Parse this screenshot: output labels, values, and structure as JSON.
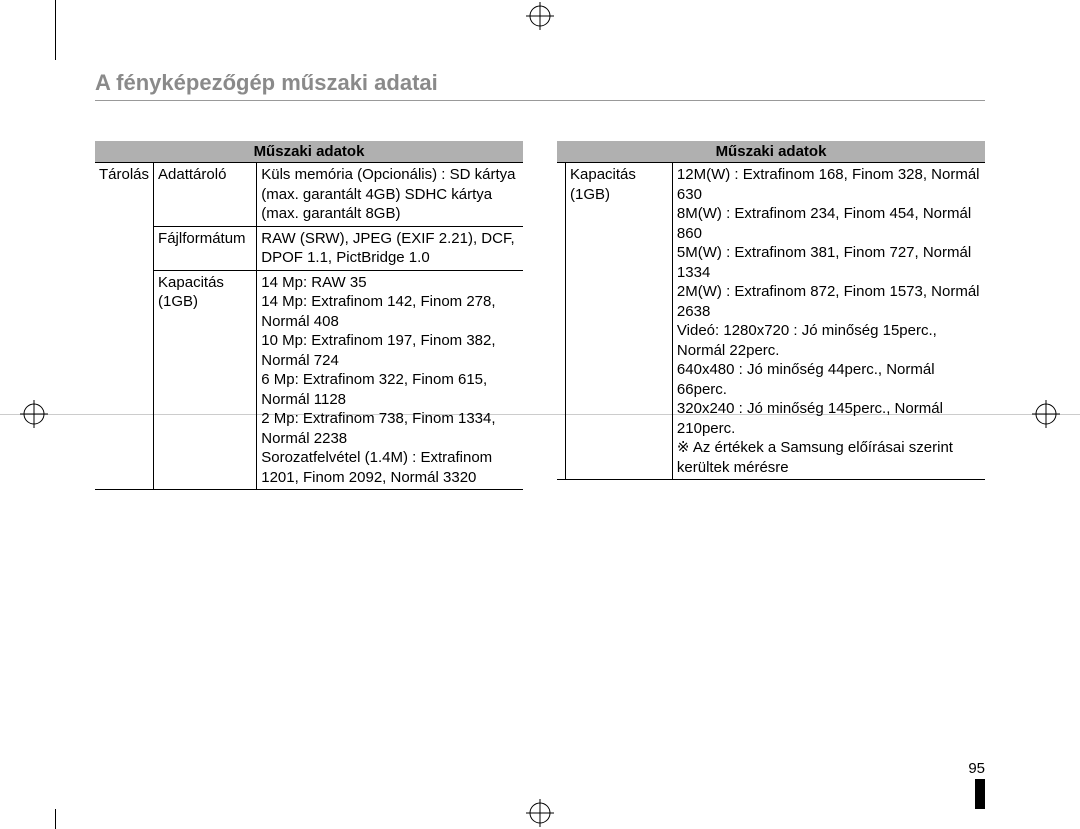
{
  "title": "A fényképezőgép műszaki adatai",
  "page_number": "95",
  "left_table": {
    "header": "Műszaki adatok",
    "category": "Tárolás",
    "rows": [
      {
        "sub": "Adattároló",
        "val": "Küls memória (Opcionális) : SD kártya (max. garantált 4GB) SDHC kártya (max. garantált 8GB)"
      },
      {
        "sub": "Fájlformátum",
        "val": "RAW (SRW), JPEG (EXIF 2.21), DCF, DPOF 1.1, PictBridge 1.0"
      },
      {
        "sub": "Kapacitás (1GB)",
        "val": "14 Mp: RAW 35\n14 Mp: Extrafinom 142, Finom 278, Normál 408\n10 Mp: Extrafinom 197, Finom 382, Normál 724\n6 Mp: Extrafinom 322, Finom 615, Normál 1128\n2 Mp: Extrafinom 738, Finom 1334, Normál 2238\nSorozatfelvétel (1.4M) : Extrafinom 1201, Finom 2092, Normál 3320"
      }
    ]
  },
  "right_table": {
    "header": "Műszaki adatok",
    "category": "",
    "rows": [
      {
        "sub": "Kapacitás (1GB)",
        "val": "12M(W) : Extrafinom 168, Finom 328, Normál 630\n8M(W) : Extrafinom 234, Finom 454, Normál 860\n5M(W) : Extrafinom 381, Finom 727, Normál 1334\n2M(W) : Extrafinom 872, Finom 1573, Normál 2638\nVideó: 1280x720 : Jó minőség 15perc., Normál 22perc.\n640x480 : Jó minőség 44perc., Normál 66perc.\n320x240 : Jó minőség 145perc., Normál 210perc.\n※ Az értékek a Samsung előírásai szerint kerültek mérésre"
      }
    ]
  },
  "colors": {
    "title": "#8a8a8a",
    "header_bg": "#b0b0b0",
    "line": "#000000",
    "crop_gray": "#cccccc"
  }
}
